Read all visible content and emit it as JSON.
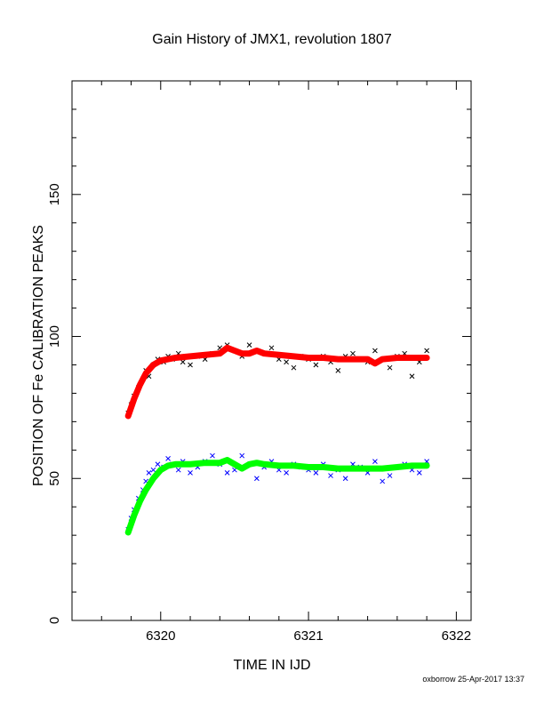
{
  "chart_data": {
    "type": "scatter",
    "title": "Gain History of JMX1, revolution 1807",
    "xlabel": "TIME IN IJD",
    "ylabel": "POSITION OF Fe CALIBRATION PEAKS",
    "xlim": [
      6319.4,
      6322.1
    ],
    "ylim": [
      0,
      190
    ],
    "xticks": [
      6320,
      6321,
      6322
    ],
    "yticks": [
      0,
      50,
      100,
      150
    ],
    "grid": false,
    "series": [
      {
        "marker": "x",
        "color": "#000000",
        "x": [
          6319.78,
          6319.8,
          6319.82,
          6319.85,
          6319.88,
          6319.9,
          6319.92,
          6319.95,
          6319.98,
          6320.02,
          6320.05,
          6320.08,
          6320.12,
          6320.15,
          6320.2,
          6320.25,
          6320.3,
          6320.35,
          6320.4,
          6320.45,
          6320.5,
          6320.55,
          6320.6,
          6320.65,
          6320.7,
          6320.75,
          6320.8,
          6320.85,
          6320.9,
          6320.95,
          6321.0,
          6321.05,
          6321.1,
          6321.15,
          6321.2,
          6321.25,
          6321.3,
          6321.35,
          6321.4,
          6321.45,
          6321.5,
          6321.55,
          6321.6,
          6321.65,
          6321.7,
          6321.75,
          6321.8
        ],
        "y": [
          73,
          76,
          79,
          82,
          85,
          88,
          86,
          90,
          92,
          91,
          93,
          92,
          94,
          91,
          90,
          93,
          92,
          94,
          96,
          97,
          95,
          93,
          97,
          95,
          94,
          96,
          92,
          91,
          89,
          93,
          92,
          90,
          93,
          91,
          88,
          93,
          94,
          92,
          91,
          95,
          92,
          89,
          93,
          94,
          86,
          91,
          95
        ]
      },
      {
        "marker": "x",
        "color": "#0000ff",
        "x": [
          6319.78,
          6319.8,
          6319.82,
          6319.85,
          6319.88,
          6319.9,
          6319.92,
          6319.95,
          6319.98,
          6320.02,
          6320.05,
          6320.08,
          6320.12,
          6320.15,
          6320.2,
          6320.25,
          6320.3,
          6320.35,
          6320.4,
          6320.45,
          6320.5,
          6320.55,
          6320.6,
          6320.65,
          6320.7,
          6320.75,
          6320.8,
          6320.85,
          6320.9,
          6320.95,
          6321.0,
          6321.05,
          6321.1,
          6321.15,
          6321.2,
          6321.25,
          6321.3,
          6321.35,
          6321.4,
          6321.45,
          6321.5,
          6321.55,
          6321.6,
          6321.65,
          6321.7,
          6321.75,
          6321.8
        ],
        "y": [
          32,
          36,
          39,
          43,
          46,
          49,
          52,
          53,
          55,
          54,
          57,
          55,
          53,
          56,
          52,
          54,
          56,
          58,
          55,
          52,
          53,
          58,
          55,
          50,
          54,
          56,
          53,
          52,
          55,
          54,
          53,
          52,
          55,
          51,
          53,
          50,
          55,
          54,
          52,
          56,
          49,
          51,
          54,
          55,
          53,
          52,
          56
        ]
      },
      {
        "marker": "line",
        "color": "#ff0000",
        "x": [
          6319.78,
          6319.82,
          6319.86,
          6319.9,
          6319.95,
          6320.0,
          6320.05,
          6320.1,
          6320.2,
          6320.3,
          6320.4,
          6320.45,
          6320.5,
          6320.55,
          6320.6,
          6320.65,
          6320.7,
          6320.8,
          6320.9,
          6321.0,
          6321.1,
          6321.2,
          6321.3,
          6321.4,
          6321.45,
          6321.5,
          6321.6,
          6321.7,
          6321.8
        ],
        "y": [
          72,
          78,
          83,
          87,
          90,
          91.5,
          92,
          92.5,
          93,
          93.5,
          94,
          96,
          95,
          94,
          94,
          95,
          94,
          93.5,
          93,
          92.5,
          92.5,
          92,
          92,
          92,
          90.5,
          92,
          92.5,
          92.5,
          92.5
        ]
      },
      {
        "marker": "line",
        "color": "#00ff00",
        "x": [
          6319.78,
          6319.82,
          6319.86,
          6319.9,
          6319.95,
          6320.0,
          6320.05,
          6320.1,
          6320.2,
          6320.3,
          6320.4,
          6320.45,
          6320.5,
          6320.55,
          6320.6,
          6320.65,
          6320.7,
          6320.8,
          6320.9,
          6321.0,
          6321.1,
          6321.2,
          6321.3,
          6321.4,
          6321.5,
          6321.6,
          6321.7,
          6321.8
        ],
        "y": [
          31,
          37,
          42,
          46,
          50,
          53,
          54.5,
          55,
          55,
          55.5,
          55.5,
          56.5,
          55,
          53.5,
          55,
          55.5,
          55,
          54.5,
          54.5,
          54,
          54,
          53.5,
          53.5,
          53.5,
          53.5,
          54,
          54.5,
          54.5
        ]
      }
    ]
  },
  "footer": "oxborrow 25-Apr-2017 13:37"
}
